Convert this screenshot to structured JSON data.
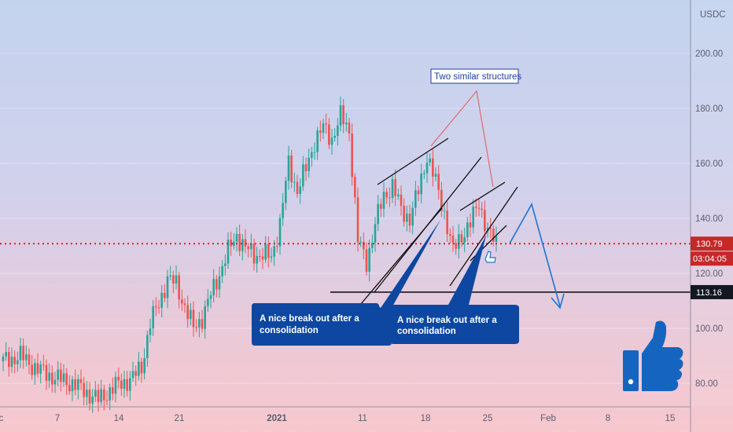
{
  "chart_data": {
    "type": "candlestick",
    "currency_label": "USDC",
    "y_ticks": [
      80,
      100,
      120,
      140,
      160,
      180,
      200
    ],
    "y_tick_labels": [
      "80.00",
      "100.00",
      "120.00",
      "140.00",
      "160.00",
      "180.00",
      "200.00"
    ],
    "ylim": [
      73,
      213
    ],
    "x_tick_labels": [
      "Dec",
      "7",
      "14",
      "21",
      "2021",
      "11",
      "18",
      "25",
      "Feb",
      "8",
      "15"
    ],
    "price_path": [
      {
        "date": "Dec 01",
        "price": 88
      },
      {
        "date": "Dec 03",
        "price": 90
      },
      {
        "date": "Dec 05",
        "price": 85
      },
      {
        "date": "Dec 07",
        "price": 82
      },
      {
        "date": "Dec 09",
        "price": 80
      },
      {
        "date": "Dec 11",
        "price": 76
      },
      {
        "date": "Dec 12",
        "price": 74
      },
      {
        "date": "Dec 14",
        "price": 79
      },
      {
        "date": "Dec 16",
        "price": 82
      },
      {
        "date": "Dec 17",
        "price": 86
      },
      {
        "date": "Dec 18",
        "price": 102
      },
      {
        "date": "Dec 19",
        "price": 109
      },
      {
        "date": "Dec 20",
        "price": 118
      },
      {
        "date": "Dec 21",
        "price": 116
      },
      {
        "date": "Dec 22",
        "price": 108
      },
      {
        "date": "Dec 23",
        "price": 100
      },
      {
        "date": "Dec 24",
        "price": 104
      },
      {
        "date": "Dec 25",
        "price": 112
      },
      {
        "date": "Dec 27",
        "price": 128
      },
      {
        "date": "Dec 28",
        "price": 134
      },
      {
        "date": "Dec 29",
        "price": 129
      },
      {
        "date": "Dec 30",
        "price": 127
      },
      {
        "date": "Jan 01",
        "price": 126
      },
      {
        "date": "Jan 02",
        "price": 138
      },
      {
        "date": "Jan 03",
        "price": 160
      },
      {
        "date": "Jan 04",
        "price": 150
      },
      {
        "date": "Jan 05",
        "price": 158
      },
      {
        "date": "Jan 06",
        "price": 168
      },
      {
        "date": "Jan 07",
        "price": 173
      },
      {
        "date": "Jan 08",
        "price": 169
      },
      {
        "date": "Jan 09",
        "price": 177
      },
      {
        "date": "Jan 10",
        "price": 172
      },
      {
        "date": "Jan 11",
        "price": 132
      },
      {
        "date": "Jan 12",
        "price": 124
      },
      {
        "date": "Jan 13",
        "price": 138
      },
      {
        "date": "Jan 14",
        "price": 148
      },
      {
        "date": "Jan 15",
        "price": 152
      },
      {
        "date": "Jan 16",
        "price": 143
      },
      {
        "date": "Jan 17",
        "price": 140
      },
      {
        "date": "Jan 18",
        "price": 150
      },
      {
        "date": "Jan 19",
        "price": 163
      },
      {
        "date": "Jan 20",
        "price": 153
      },
      {
        "date": "Jan 21",
        "price": 142
      },
      {
        "date": "Jan 22",
        "price": 128
      },
      {
        "date": "Jan 23",
        "price": 134
      },
      {
        "date": "Jan 24",
        "price": 138
      },
      {
        "date": "Jan 25",
        "price": 146
      },
      {
        "date": "Jan 26",
        "price": 135
      },
      {
        "date": "Jan 27",
        "price": 131
      }
    ],
    "current_price_label": "130.79",
    "countdown_label": "03:04:05",
    "support_price": 113.16,
    "support_label": "113.16",
    "annotations": {
      "structures_note": "Two similar structures",
      "callout_1": [
        "A nice break out after a",
        "consolidation"
      ],
      "callout_2": [
        "A nice break out after a",
        "consolidation"
      ]
    },
    "colors": {
      "up": "#26a69a",
      "down": "#ef5350",
      "current_price": "#c62828",
      "support": "#131722",
      "callout_bg": "#0d47a1",
      "projection": "#1e74d1",
      "thumbs_up": "#1565c0"
    }
  }
}
